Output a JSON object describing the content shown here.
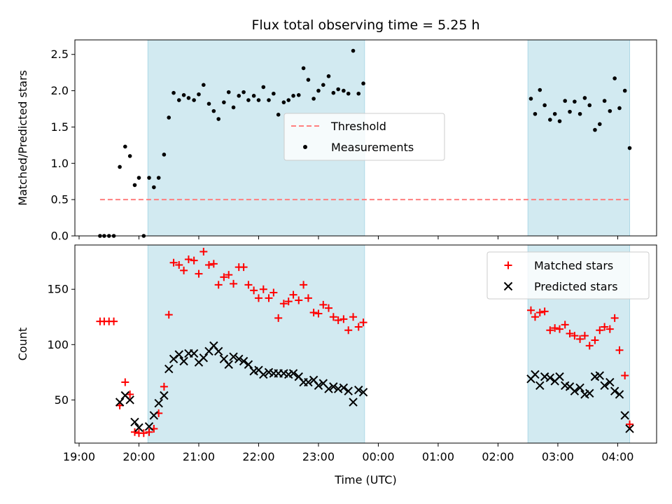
{
  "chart_data": {
    "type": "scatter",
    "title": "Flux total observing time = 5.25 h",
    "xlabel": "Time (UTC)",
    "x_tick_labels": [
      "19:00",
      "20:00",
      "21:00",
      "22:00",
      "23:00",
      "00:00",
      "01:00",
      "02:00",
      "03:00",
      "04:00"
    ],
    "x_ticks_hours": [
      19,
      20,
      21,
      22,
      23,
      24,
      25,
      26,
      27,
      28
    ],
    "xlim_hours": [
      18.93,
      28.65
    ],
    "shaded_intervals_hours": [
      [
        20.15,
        23.77
      ],
      [
        26.5,
        28.2
      ]
    ],
    "colors": {
      "shade": "#add8e6",
      "threshold": "#ff7f7f",
      "measurement": "#000000",
      "matched": "#ff0000",
      "predicted": "#000000"
    },
    "panels": [
      {
        "ylabel": "Matched/Predicted stars",
        "ylim": [
          0,
          2.7
        ],
        "y_ticks": [
          0.0,
          0.5,
          1.0,
          1.5,
          2.0,
          2.5
        ],
        "y_tick_labels": [
          "0.0",
          "0.5",
          "1.0",
          "1.5",
          "2.0",
          "2.5"
        ],
        "legend_position": "center",
        "threshold": {
          "name": "Threshold",
          "value": 0.5,
          "x_range_hours": [
            19.35,
            28.2
          ]
        },
        "series": [
          {
            "name": "Measurements",
            "points": [
              [
                19.35,
                0.0
              ],
              [
                19.42,
                0.0
              ],
              [
                19.5,
                0.0
              ],
              [
                19.58,
                0.0
              ],
              [
                19.68,
                0.95
              ],
              [
                19.77,
                1.23
              ],
              [
                19.85,
                1.1
              ],
              [
                19.93,
                0.7
              ],
              [
                20.0,
                0.8
              ],
              [
                20.08,
                0.0
              ],
              [
                20.17,
                0.8
              ],
              [
                20.25,
                0.67
              ],
              [
                20.33,
                0.8
              ],
              [
                20.42,
                1.12
              ],
              [
                20.5,
                1.63
              ],
              [
                20.58,
                1.97
              ],
              [
                20.67,
                1.87
              ],
              [
                20.75,
                1.94
              ],
              [
                20.83,
                1.9
              ],
              [
                20.92,
                1.87
              ],
              [
                21.0,
                1.95
              ],
              [
                21.08,
                2.08
              ],
              [
                21.17,
                1.82
              ],
              [
                21.25,
                1.72
              ],
              [
                21.33,
                1.61
              ],
              [
                21.42,
                1.84
              ],
              [
                21.5,
                1.98
              ],
              [
                21.58,
                1.77
              ],
              [
                21.67,
                1.93
              ],
              [
                21.75,
                1.98
              ],
              [
                21.83,
                1.87
              ],
              [
                21.92,
                1.93
              ],
              [
                22.0,
                1.87
              ],
              [
                22.08,
                2.05
              ],
              [
                22.17,
                1.87
              ],
              [
                22.25,
                1.96
              ],
              [
                22.33,
                1.67
              ],
              [
                22.42,
                1.84
              ],
              [
                22.5,
                1.87
              ],
              [
                22.58,
                1.93
              ],
              [
                22.67,
                1.94
              ],
              [
                22.75,
                2.31
              ],
              [
                22.83,
                2.15
              ],
              [
                22.92,
                1.89
              ],
              [
                23.0,
                2.0
              ],
              [
                23.08,
                2.08
              ],
              [
                23.17,
                2.2
              ],
              [
                23.25,
                1.97
              ],
              [
                23.33,
                2.02
              ],
              [
                23.42,
                2.0
              ],
              [
                23.5,
                1.96
              ],
              [
                23.58,
                2.55
              ],
              [
                23.67,
                1.96
              ],
              [
                23.75,
                2.1
              ],
              [
                26.55,
                1.89
              ],
              [
                26.62,
                1.68
              ],
              [
                26.7,
                2.01
              ],
              [
                26.78,
                1.8
              ],
              [
                26.87,
                1.6
              ],
              [
                26.95,
                1.68
              ],
              [
                27.03,
                1.58
              ],
              [
                27.12,
                1.86
              ],
              [
                27.2,
                1.71
              ],
              [
                27.28,
                1.85
              ],
              [
                27.37,
                1.68
              ],
              [
                27.45,
                1.9
              ],
              [
                27.53,
                1.8
              ],
              [
                27.62,
                1.46
              ],
              [
                27.7,
                1.54
              ],
              [
                27.78,
                1.86
              ],
              [
                27.87,
                1.72
              ],
              [
                27.95,
                2.17
              ],
              [
                28.03,
                1.76
              ],
              [
                28.12,
                2.0
              ],
              [
                28.2,
                1.21
              ]
            ]
          }
        ]
      },
      {
        "ylabel": "Count",
        "ylim": [
          11,
          190
        ],
        "y_ticks": [
          50,
          100,
          150
        ],
        "y_tick_labels": [
          "50",
          "100",
          "150"
        ],
        "legend_position": "top-right",
        "series": [
          {
            "name": "Matched stars",
            "marker": "+",
            "points": [
              [
                19.35,
                121
              ],
              [
                19.42,
                121
              ],
              [
                19.5,
                121
              ],
              [
                19.58,
                121
              ],
              [
                19.68,
                45
              ],
              [
                19.77,
                66
              ],
              [
                19.85,
                55
              ],
              [
                19.93,
                21
              ],
              [
                20.0,
                20
              ],
              [
                20.08,
                20
              ],
              [
                20.17,
                21
              ],
              [
                20.25,
                24
              ],
              [
                20.33,
                38
              ],
              [
                20.42,
                62
              ],
              [
                20.5,
                127
              ],
              [
                20.58,
                174
              ],
              [
                20.67,
                172
              ],
              [
                20.75,
                167
              ],
              [
                20.83,
                177
              ],
              [
                20.92,
                176
              ],
              [
                21.0,
                164
              ],
              [
                21.08,
                184
              ],
              [
                21.17,
                172
              ],
              [
                21.25,
                173
              ],
              [
                21.33,
                154
              ],
              [
                21.42,
                161
              ],
              [
                21.5,
                163
              ],
              [
                21.58,
                155
              ],
              [
                21.67,
                170
              ],
              [
                21.75,
                170
              ],
              [
                21.83,
                154
              ],
              [
                21.92,
                149
              ],
              [
                22.0,
                142
              ],
              [
                22.08,
                150
              ],
              [
                22.17,
                142
              ],
              [
                22.25,
                147
              ],
              [
                22.33,
                124
              ],
              [
                22.42,
                137
              ],
              [
                22.5,
                139
              ],
              [
                22.58,
                145
              ],
              [
                22.67,
                140
              ],
              [
                22.75,
                154
              ],
              [
                22.83,
                142
              ],
              [
                22.92,
                129
              ],
              [
                23.0,
                128
              ],
              [
                23.08,
                136
              ],
              [
                23.17,
                133
              ],
              [
                23.25,
                125
              ],
              [
                23.33,
                122
              ],
              [
                23.42,
                123
              ],
              [
                23.5,
                113
              ],
              [
                23.58,
                125
              ],
              [
                23.67,
                116
              ],
              [
                23.75,
                120
              ],
              [
                26.55,
                131
              ],
              [
                26.62,
                125
              ],
              [
                26.7,
                129
              ],
              [
                26.78,
                130
              ],
              [
                26.87,
                113
              ],
              [
                26.95,
                115
              ],
              [
                27.03,
                114
              ],
              [
                27.12,
                118
              ],
              [
                27.2,
                110
              ],
              [
                27.28,
                108
              ],
              [
                27.37,
                105
              ],
              [
                27.45,
                108
              ],
              [
                27.53,
                99
              ],
              [
                27.62,
                104
              ],
              [
                27.7,
                113
              ],
              [
                27.78,
                116
              ],
              [
                27.87,
                114
              ],
              [
                27.95,
                124
              ],
              [
                28.03,
                95
              ],
              [
                28.12,
                72
              ],
              [
                28.2,
                28
              ]
            ]
          },
          {
            "name": "Predicted stars",
            "marker": "x",
            "points": [
              [
                19.68,
                48
              ],
              [
                19.77,
                54
              ],
              [
                19.85,
                50
              ],
              [
                19.93,
                30
              ],
              [
                20.0,
                25
              ],
              [
                20.17,
                26
              ],
              [
                20.25,
                36
              ],
              [
                20.33,
                47
              ],
              [
                20.42,
                54
              ],
              [
                20.5,
                78
              ],
              [
                20.58,
                87
              ],
              [
                20.67,
                91
              ],
              [
                20.75,
                85
              ],
              [
                20.83,
                92
              ],
              [
                20.92,
                92
              ],
              [
                21.0,
                84
              ],
              [
                21.08,
                88
              ],
              [
                21.17,
                94
              ],
              [
                21.25,
                99
              ],
              [
                21.33,
                94
              ],
              [
                21.42,
                87
              ],
              [
                21.5,
                82
              ],
              [
                21.58,
                89
              ],
              [
                21.67,
                87
              ],
              [
                21.75,
                85
              ],
              [
                21.83,
                82
              ],
              [
                21.92,
                76
              ],
              [
                22.0,
                77
              ],
              [
                22.08,
                73
              ],
              [
                22.17,
                75
              ],
              [
                22.25,
                74
              ],
              [
                22.33,
                74
              ],
              [
                22.42,
                74
              ],
              [
                22.5,
                73
              ],
              [
                22.58,
                74
              ],
              [
                22.67,
                71
              ],
              [
                22.75,
                66
              ],
              [
                22.83,
                66
              ],
              [
                22.92,
                68
              ],
              [
                23.0,
                63
              ],
              [
                23.08,
                65
              ],
              [
                23.17,
                60
              ],
              [
                23.25,
                62
              ],
              [
                23.33,
                60
              ],
              [
                23.42,
                61
              ],
              [
                23.5,
                58
              ],
              [
                23.58,
                48
              ],
              [
                23.67,
                59
              ],
              [
                23.75,
                57
              ],
              [
                26.55,
                69
              ],
              [
                26.62,
                73
              ],
              [
                26.7,
                63
              ],
              [
                26.78,
                71
              ],
              [
                26.87,
                70
              ],
              [
                26.95,
                67
              ],
              [
                27.03,
                71
              ],
              [
                27.12,
                63
              ],
              [
                27.2,
                62
              ],
              [
                27.28,
                58
              ],
              [
                27.37,
                61
              ],
              [
                27.45,
                55
              ],
              [
                27.53,
                56
              ],
              [
                27.62,
                71
              ],
              [
                27.7,
                72
              ],
              [
                27.78,
                63
              ],
              [
                27.87,
                66
              ],
              [
                27.95,
                58
              ],
              [
                28.03,
                55
              ],
              [
                28.12,
                36
              ],
              [
                28.2,
                24
              ]
            ]
          }
        ]
      }
    ]
  }
}
